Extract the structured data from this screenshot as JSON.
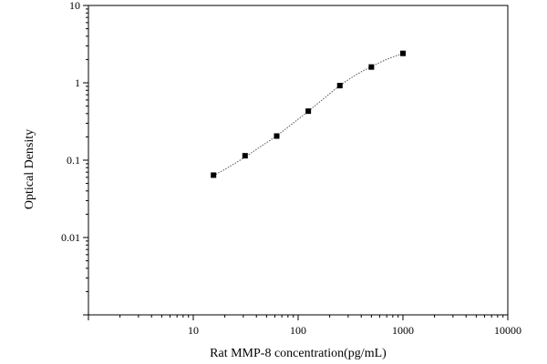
{
  "chart_data": {
    "type": "scatter",
    "xlabel": "Rat MMP-8 concentration(pg/mL)",
    "ylabel": "Optical Density",
    "xscale": "log",
    "yscale": "log",
    "xlim": [
      1,
      10000
    ],
    "ylim": [
      0.001,
      10
    ],
    "xticks": [
      {
        "value": 10,
        "label": "10"
      },
      {
        "value": 100,
        "label": "100"
      },
      {
        "value": 1000,
        "label": "1000"
      },
      {
        "value": 10000,
        "label": "10000"
      }
    ],
    "yticks": [
      {
        "value": 0.01,
        "label": "0.01"
      },
      {
        "value": 0.1,
        "label": "0.1"
      },
      {
        "value": 1,
        "label": "1"
      },
      {
        "value": 10,
        "label": "10"
      }
    ],
    "grid": false,
    "series": [
      {
        "marker": "square",
        "color": "#000000",
        "points": [
          {
            "x": 15.6,
            "y": 0.064
          },
          {
            "x": 31.2,
            "y": 0.114
          },
          {
            "x": 62.5,
            "y": 0.205
          },
          {
            "x": 125,
            "y": 0.43
          },
          {
            "x": 250,
            "y": 0.92
          },
          {
            "x": 500,
            "y": 1.6
          },
          {
            "x": 1000,
            "y": 2.4
          }
        ]
      }
    ],
    "fit_curve": {
      "style": "dotted",
      "color": "#555555",
      "points": [
        {
          "x": 15.6,
          "y": 0.063
        },
        {
          "x": 22,
          "y": 0.082
        },
        {
          "x": 31.2,
          "y": 0.11
        },
        {
          "x": 44,
          "y": 0.15
        },
        {
          "x": 62.5,
          "y": 0.207
        },
        {
          "x": 88,
          "y": 0.295
        },
        {
          "x": 125,
          "y": 0.43
        },
        {
          "x": 177,
          "y": 0.63
        },
        {
          "x": 250,
          "y": 0.92
        },
        {
          "x": 354,
          "y": 1.26
        },
        {
          "x": 500,
          "y": 1.62
        },
        {
          "x": 707,
          "y": 2.02
        },
        {
          "x": 1000,
          "y": 2.4
        }
      ]
    }
  }
}
